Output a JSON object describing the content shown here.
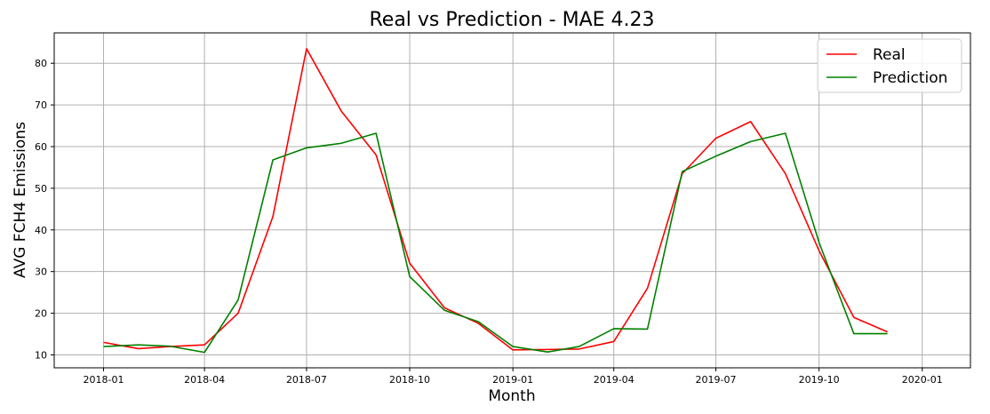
{
  "chart_data": {
    "type": "line",
    "title": "Real vs Prediction - MAE 4.23",
    "xlabel": "Month",
    "ylabel": "AVG FCH4 Emissions",
    "x": [
      "2018-01",
      "2018-02",
      "2018-03",
      "2018-04",
      "2018-05",
      "2018-06",
      "2018-07",
      "2018-08",
      "2018-09",
      "2018-10",
      "2018-11",
      "2018-12",
      "2019-01",
      "2019-02",
      "2019-03",
      "2019-04",
      "2019-05",
      "2019-06",
      "2019-07",
      "2019-08",
      "2019-09",
      "2019-10",
      "2019-11",
      "2019-12"
    ],
    "series": [
      {
        "name": "Real",
        "color": "#ff0000",
        "values": [
          13.0,
          11.5,
          12.0,
          12.4,
          20.0,
          43.2,
          83.5,
          68.5,
          58.0,
          32.0,
          21.3,
          17.6,
          11.2,
          11.3,
          11.4,
          13.2,
          26.0,
          53.5,
          62.0,
          66.0,
          53.5,
          35.0,
          19.0,
          15.5
        ]
      },
      {
        "name": "Prediction",
        "color": "#008000",
        "values": [
          12.0,
          12.4,
          12.1,
          10.6,
          23.2,
          56.8,
          59.7,
          60.8,
          63.2,
          28.8,
          20.7,
          18.0,
          12.0,
          10.7,
          12.0,
          16.3,
          16.2,
          54.0,
          57.7,
          61.2,
          63.2,
          37.0,
          15.1,
          15.1
        ]
      }
    ],
    "xticks": [
      "2018-01",
      "2018-04",
      "2018-07",
      "2018-10",
      "2019-01",
      "2019-04",
      "2019-07",
      "2019-10",
      "2020-01"
    ],
    "yticks": [
      10,
      20,
      30,
      40,
      50,
      60,
      70,
      80
    ],
    "xlim": [
      "2017-11-18",
      "2020-02-13"
    ],
    "ylim": [
      6.9,
      87.3
    ],
    "grid": true,
    "legend_position": "top-right"
  }
}
